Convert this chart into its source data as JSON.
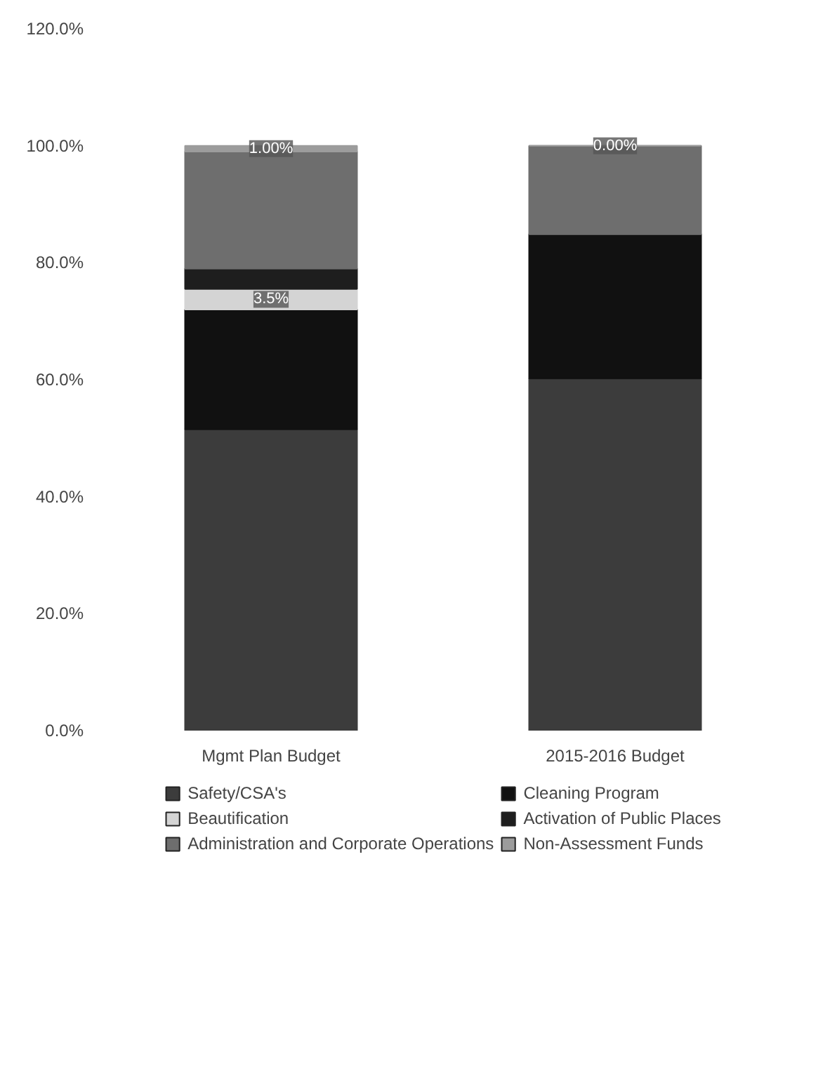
{
  "chart_data": {
    "type": "bar",
    "stacked": true,
    "categories": [
      "Mgmt Plan Budget",
      "2015-2016 Budget"
    ],
    "series": [
      {
        "name": "Safety/CSA's",
        "color": "#3c3c3c",
        "values": [
          51.5,
          60.2
        ],
        "value_labels": [
          null,
          null
        ]
      },
      {
        "name": "Cleaning Program",
        "color": "#111111",
        "values": [
          20.5,
          24.7
        ],
        "value_labels": [
          null,
          null
        ]
      },
      {
        "name": "Beautification",
        "color": "#d4d4d4",
        "values": [
          3.5,
          0
        ],
        "value_labels": [
          "3.5%",
          null
        ]
      },
      {
        "name": "Activation of Public Places",
        "color": "#1e1e1e",
        "values": [
          3.5,
          0
        ],
        "value_labels": [
          null,
          null
        ]
      },
      {
        "name": "Administration and Corporate Operations",
        "color": "#6e6e6e",
        "values": [
          20.0,
          15.1
        ],
        "value_labels": [
          null,
          null
        ]
      },
      {
        "name": "Non-Assessment Funds",
        "color": "#9c9c9c",
        "values": [
          1.0,
          0.0
        ],
        "value_labels": [
          "1.00%",
          "0.00%"
        ]
      }
    ],
    "ylim": [
      0,
      120
    ],
    "yticks": [
      {
        "value": 0,
        "label": "0.0%"
      },
      {
        "value": 20,
        "label": "20.0%"
      },
      {
        "value": 40,
        "label": "40.0%"
      },
      {
        "value": 60,
        "label": "60.0%"
      },
      {
        "value": 80,
        "label": "80.0%"
      },
      {
        "value": 100,
        "label": "100.0%"
      },
      {
        "value": 120,
        "label": "120.0%"
      }
    ],
    "grid": false,
    "legend": "bottom"
  }
}
